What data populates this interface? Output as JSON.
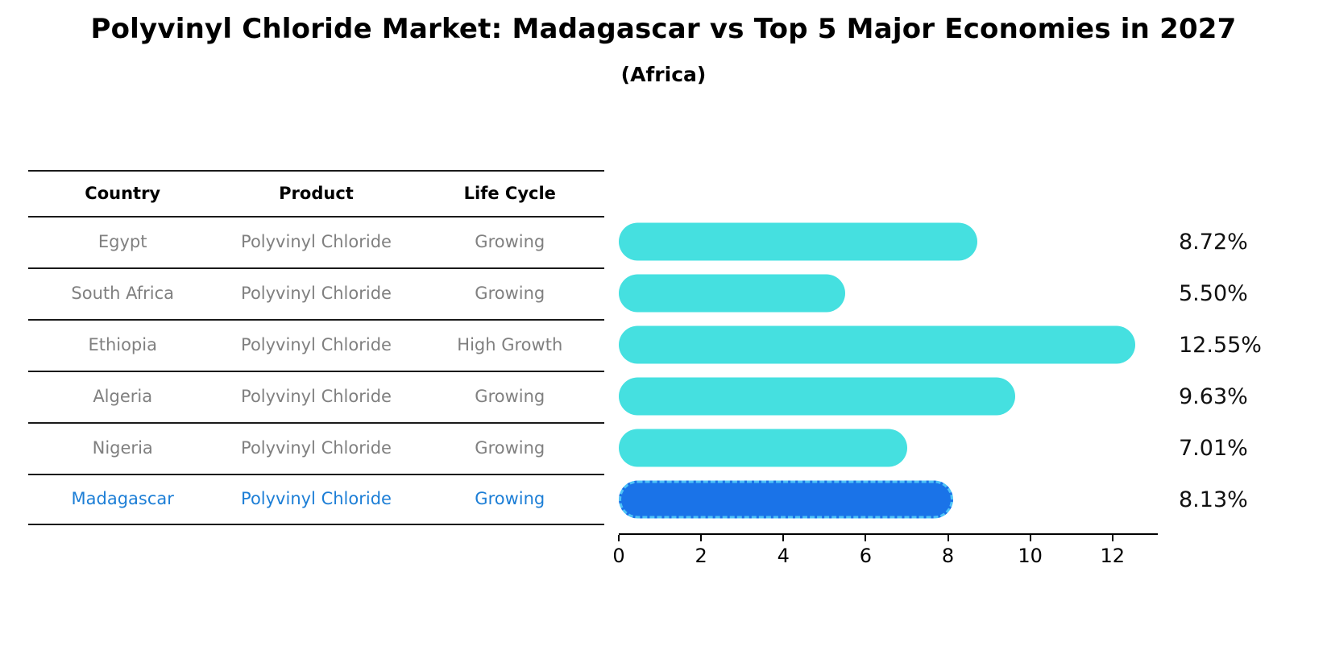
{
  "title": "Polyvinyl Chloride Market: Madagascar vs Top 5 Major Economies in 2027",
  "subtitle": "(Africa)",
  "table": {
    "headers": {
      "country": "Country",
      "product": "Product",
      "life_cycle": "Life Cycle"
    },
    "rows": [
      {
        "country": "Egypt",
        "product": "Polyvinyl Chloride",
        "life_cycle": "Growing",
        "label": "8.72%"
      },
      {
        "country": "South Africa",
        "product": "Polyvinyl Chloride",
        "life_cycle": "Growing",
        "label": "5.50%"
      },
      {
        "country": "Ethiopia",
        "product": "Polyvinyl Chloride",
        "life_cycle": "High Growth",
        "label": "12.55%"
      },
      {
        "country": "Algeria",
        "product": "Polyvinyl Chloride",
        "life_cycle": "Growing",
        "label": "9.63%"
      },
      {
        "country": "Nigeria",
        "product": "Polyvinyl Chloride",
        "life_cycle": "Growing",
        "label": "7.01%"
      },
      {
        "country": "Madagascar",
        "product": "Polyvinyl Chloride",
        "life_cycle": "Growing",
        "label": "8.13%"
      }
    ]
  },
  "chart_data": {
    "type": "bar",
    "orientation": "horizontal",
    "title": "Polyvinyl Chloride Market: Madagascar vs Top 5 Major Economies in 2027",
    "subtitle": "(Africa)",
    "categories": [
      "Egypt",
      "South Africa",
      "Ethiopia",
      "Algeria",
      "Nigeria",
      "Madagascar"
    ],
    "values": [
      8.72,
      5.5,
      12.55,
      9.63,
      7.01,
      8.13
    ],
    "value_labels": [
      "8.72%",
      "5.50%",
      "12.55%",
      "9.63%",
      "7.01%",
      "8.13%"
    ],
    "xlabel": "",
    "ylabel": "",
    "xlim": [
      0,
      13.1
    ],
    "xticks": [
      0,
      2,
      4,
      6,
      8,
      10,
      12
    ],
    "grid": false,
    "legend": false,
    "highlight_category": "Madagascar"
  },
  "colors": {
    "bar": "#45E0E0",
    "highlight_bar": "#1A73E8",
    "highlight_border": "#4FC3F7",
    "highlight_text": "#1C7ED6",
    "table_text": "#808080",
    "header_text": "#000000",
    "axis": "#000000"
  }
}
